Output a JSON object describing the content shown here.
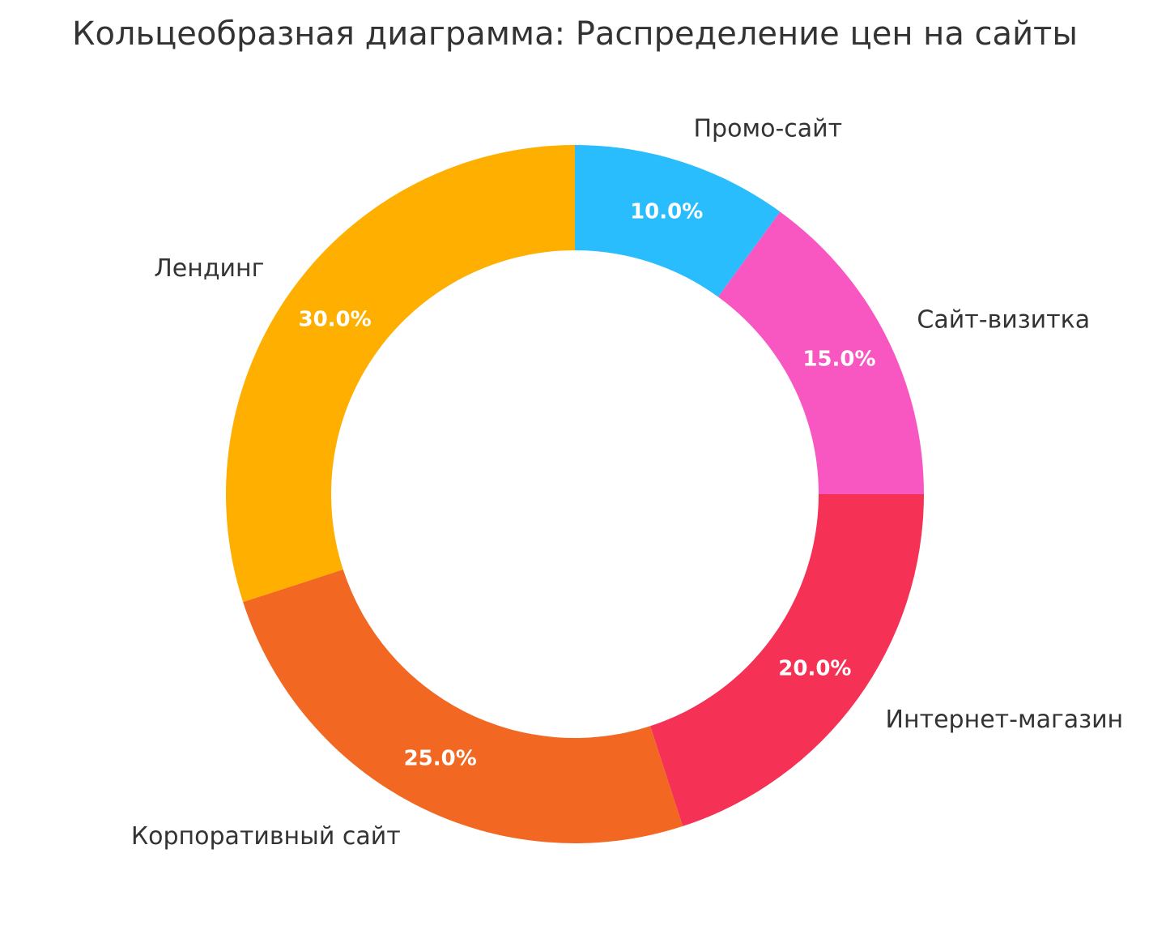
{
  "chart_data": {
    "type": "pie",
    "variant": "donut",
    "title": "Кольцеобразная диаграмма: Распределение цен на сайты",
    "direction": "clockwise",
    "start": "top",
    "slices": [
      {
        "label": "Промо-сайт",
        "value": 10.0,
        "pct_label": "10.0%",
        "color": "#29BDFD"
      },
      {
        "label": "Сайт-визитка",
        "value": 15.0,
        "pct_label": "15.0%",
        "color": "#F857C1"
      },
      {
        "label": "Интернет-магазин",
        "value": 20.0,
        "pct_label": "20.0%",
        "color": "#F53255"
      },
      {
        "label": "Корпоративный сайт",
        "value": 25.0,
        "pct_label": "25.0%",
        "color": "#F26722"
      },
      {
        "label": "Лендинг",
        "value": 30.0,
        "pct_label": "30.0%",
        "color": "#FFAF00"
      }
    ]
  }
}
